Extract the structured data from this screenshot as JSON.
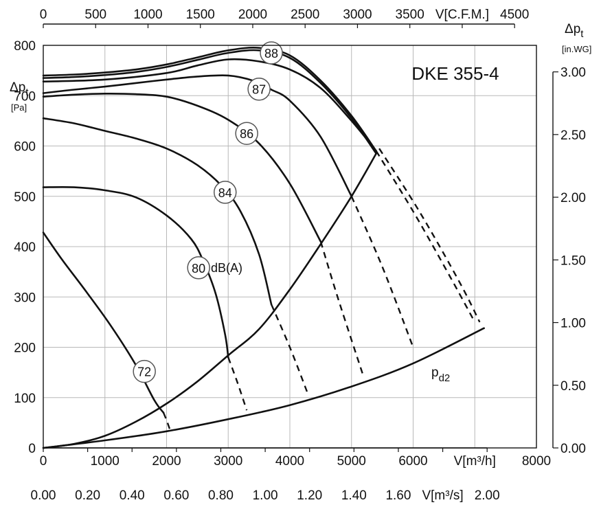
{
  "chart_data": {
    "type": "line",
    "title": "DKE 355-4",
    "grid": true,
    "x_axis": {
      "label": "V[m³/h]",
      "lim": [
        0,
        8000
      ],
      "ticks": [
        "0",
        "1000",
        "2000",
        "3000",
        "4000",
        "5000",
        "6000",
        "V[m³/h]",
        "8000"
      ],
      "tick_values": [
        0,
        1000,
        2000,
        3000,
        4000,
        5000,
        6000,
        7000,
        8000
      ]
    },
    "x_axis_bottom_secondary": {
      "label": "V[m³/s]",
      "ticks": [
        "0.00",
        "0.20",
        "0.40",
        "0.60",
        "0.80",
        "1.00",
        "1.20",
        "1.40",
        "1.60",
        "V[m³/s]",
        "2.00"
      ],
      "tick_values": [
        0,
        0.2,
        0.4,
        0.6,
        0.8,
        1.0,
        1.2,
        1.4,
        1.6,
        1.8,
        2.0
      ]
    },
    "x_axis_top": {
      "label": "V[C.F.M.]",
      "ticks": [
        "0",
        "500",
        "1000",
        "1500",
        "2000",
        "2500",
        "3000",
        "3500",
        "V[C.F.M.]",
        "4500"
      ],
      "tick_values": [
        0,
        500,
        1000,
        1500,
        2000,
        2500,
        3000,
        3500,
        4000,
        4500
      ]
    },
    "y_axis": {
      "label": "Δpt",
      "unit": "[Pa]",
      "lim": [
        0,
        800
      ],
      "ticks": [
        "0",
        "100",
        "200",
        "300",
        "400",
        "500",
        "600",
        "700",
        "800"
      ],
      "tick_values": [
        0,
        100,
        200,
        300,
        400,
        500,
        600,
        700,
        800
      ]
    },
    "y_axis_right": {
      "label": "Δpt",
      "unit": "[in.WG]",
      "ticks": [
        "0.00",
        "0.50",
        "1.00",
        "1.50",
        "2.00",
        "2.50",
        "3.00"
      ],
      "tick_values": [
        0,
        0.5,
        1.0,
        1.5,
        2.0,
        2.5,
        3.0
      ]
    },
    "series": [
      {
        "style": "solid",
        "x": [
          0,
          500,
          1000,
          1500,
          2000,
          2500,
          3000,
          3500,
          4000,
          4500,
          5000,
          5400
        ],
        "y": [
          740,
          742,
          746,
          752,
          762,
          776,
          790,
          795,
          780,
          730,
          660,
          590
        ]
      },
      {
        "style": "solid",
        "x": [
          0,
          500,
          1000,
          1500,
          2000,
          2500,
          3000,
          3500,
          4000,
          4500,
          5000,
          5400
        ],
        "y": [
          735,
          737,
          741,
          747,
          757,
          771,
          785,
          790,
          775,
          725,
          655,
          585
        ]
      },
      {
        "style": "solid",
        "x": [
          0,
          1000,
          2000,
          2500,
          3000,
          3500,
          4000,
          4500,
          5000,
          5400
        ],
        "y": [
          728,
          732,
          745,
          760,
          772,
          768,
          752,
          715,
          650,
          590
        ]
      },
      {
        "style": "solid",
        "x": [
          0,
          500,
          1000,
          1500,
          2000,
          2500,
          3000,
          3400,
          3700,
          4000,
          4500,
          5000
        ],
        "y": [
          705,
          712,
          718,
          725,
          732,
          738,
          740,
          730,
          712,
          690,
          618,
          500
        ]
      },
      {
        "style": "solid",
        "x": [
          0,
          500,
          1000,
          1500,
          2000,
          2500,
          3000,
          3500,
          4000,
          4500
        ],
        "y": [
          698,
          702,
          704,
          703,
          698,
          680,
          652,
          605,
          525,
          410
        ]
      },
      {
        "style": "solid",
        "x": [
          0,
          500,
          1000,
          1500,
          2000,
          2500,
          2900,
          3200,
          3500,
          3700
        ],
        "y": [
          655,
          645,
          630,
          615,
          595,
          562,
          520,
          470,
          385,
          285
        ]
      },
      {
        "style": "solid",
        "x": [
          0,
          500,
          1000,
          1500,
          2000,
          2400,
          2600,
          2800,
          2950,
          3000
        ],
        "y": [
          518,
          518,
          512,
          498,
          462,
          415,
          370,
          305,
          225,
          180
        ]
      },
      {
        "style": "solid",
        "x": [
          0,
          300,
          700,
          1100,
          1500,
          1800,
          1950
        ],
        "y": [
          428,
          375,
          310,
          242,
          165,
          95,
          70
        ]
      },
      {
        "style": "dashed",
        "x": [
          1950,
          2000,
          2050
        ],
        "y": [
          70,
          55,
          38
        ]
      },
      {
        "style": "dashed",
        "x": [
          3000,
          3150,
          3300
        ],
        "y": [
          180,
          130,
          75
        ]
      },
      {
        "style": "dashed",
        "x": [
          3700,
          4000,
          4300
        ],
        "y": [
          285,
          200,
          105
        ]
      },
      {
        "style": "dashed",
        "x": [
          4500,
          4800,
          5200
        ],
        "y": [
          410,
          290,
          140
        ]
      },
      {
        "style": "dashed",
        "x": [
          5000,
          5500,
          6000
        ],
        "y": [
          500,
          360,
          200
        ]
      },
      {
        "style": "dashed",
        "x": [
          5400,
          6000,
          6600,
          7000
        ],
        "y": [
          590,
          470,
          340,
          250
        ]
      },
      {
        "style": "dashed",
        "x": [
          5450,
          6100,
          6750,
          7080
        ],
        "y": [
          595,
          470,
          330,
          250
        ]
      },
      {
        "style": "solid",
        "x": [
          0,
          500,
          1000,
          1500,
          2000,
          2500,
          3000,
          3500,
          4000,
          4500,
          5000,
          5400
        ],
        "y": [
          0,
          8,
          24,
          52,
          88,
          132,
          184,
          236,
          315,
          405,
          500,
          585
        ]
      },
      {
        "style": "solid",
        "name": "pd2",
        "x": [
          0,
          1000,
          2000,
          3000,
          4000,
          5000,
          6000,
          7150
        ],
        "y": [
          0,
          15,
          33,
          57,
          85,
          122,
          168,
          238
        ]
      }
    ],
    "curve_markers": [
      {
        "label": "88",
        "x": 3700,
        "y": 785
      },
      {
        "label": "87",
        "x": 3500,
        "y": 713
      },
      {
        "label": "86",
        "x": 3300,
        "y": 625
      },
      {
        "label": "84",
        "x": 2950,
        "y": 508
      },
      {
        "label": "80",
        "x": 2520,
        "y": 358
      },
      {
        "label": "72",
        "x": 1640,
        "y": 152
      }
    ],
    "annotations": [
      {
        "text": "dB(A)"
      },
      {
        "text": "pd2"
      }
    ]
  }
}
